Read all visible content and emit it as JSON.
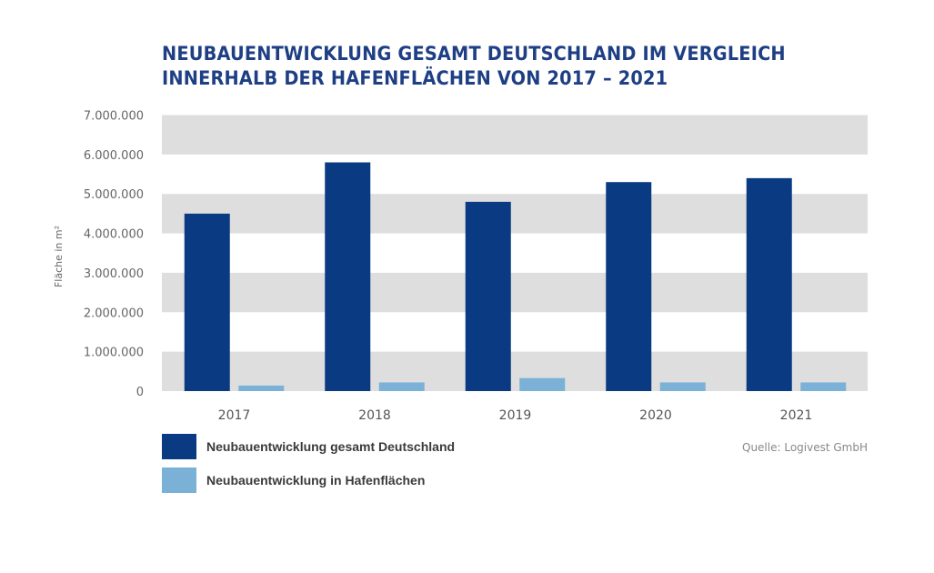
{
  "chart_data": {
    "type": "bar",
    "title": "NEUBAUENTWICKLUNG GESAMT DEUTSCHLAND IM VERGLEICH INNERHALB DER HAFENFLÄCHEN VON 2017 – 2021",
    "title_lines": [
      "NEUBAUENTWICKLUNG GESAMT DEUTSCHLAND IM VERGLEICH",
      "INNERHALB DER HAFENFLÄCHEN VON 2017 – 2021"
    ],
    "xlabel": "",
    "ylabel": "Fläche in m²",
    "categories": [
      "2017",
      "2018",
      "2019",
      "2020",
      "2021"
    ],
    "ylim": [
      0,
      7000000
    ],
    "yticks": [
      0,
      1000000,
      2000000,
      3000000,
      4000000,
      5000000,
      6000000,
      7000000
    ],
    "ytick_labels": [
      "0",
      "1.000.000",
      "2.000.000",
      "3.000.000",
      "4.000.000",
      "5.000.000",
      "6.000.000",
      "7.000.000"
    ],
    "grid": "alternating horizontal bands",
    "series": [
      {
        "name": "Neubauentwicklung gesamt Deutschland",
        "color": "#0a3a82",
        "values": [
          4500000,
          5800000,
          4800000,
          5300000,
          5400000
        ]
      },
      {
        "name": "Neubauentwicklung in Hafenflächen",
        "color": "#7bb1d6",
        "values": [
          140000,
          220000,
          330000,
          220000,
          220000
        ]
      }
    ],
    "legend_position": "bottom-left",
    "source": "Quelle: Logivest GmbH"
  },
  "colors": {
    "title": "#1f3f85",
    "band": "#dedede"
  }
}
